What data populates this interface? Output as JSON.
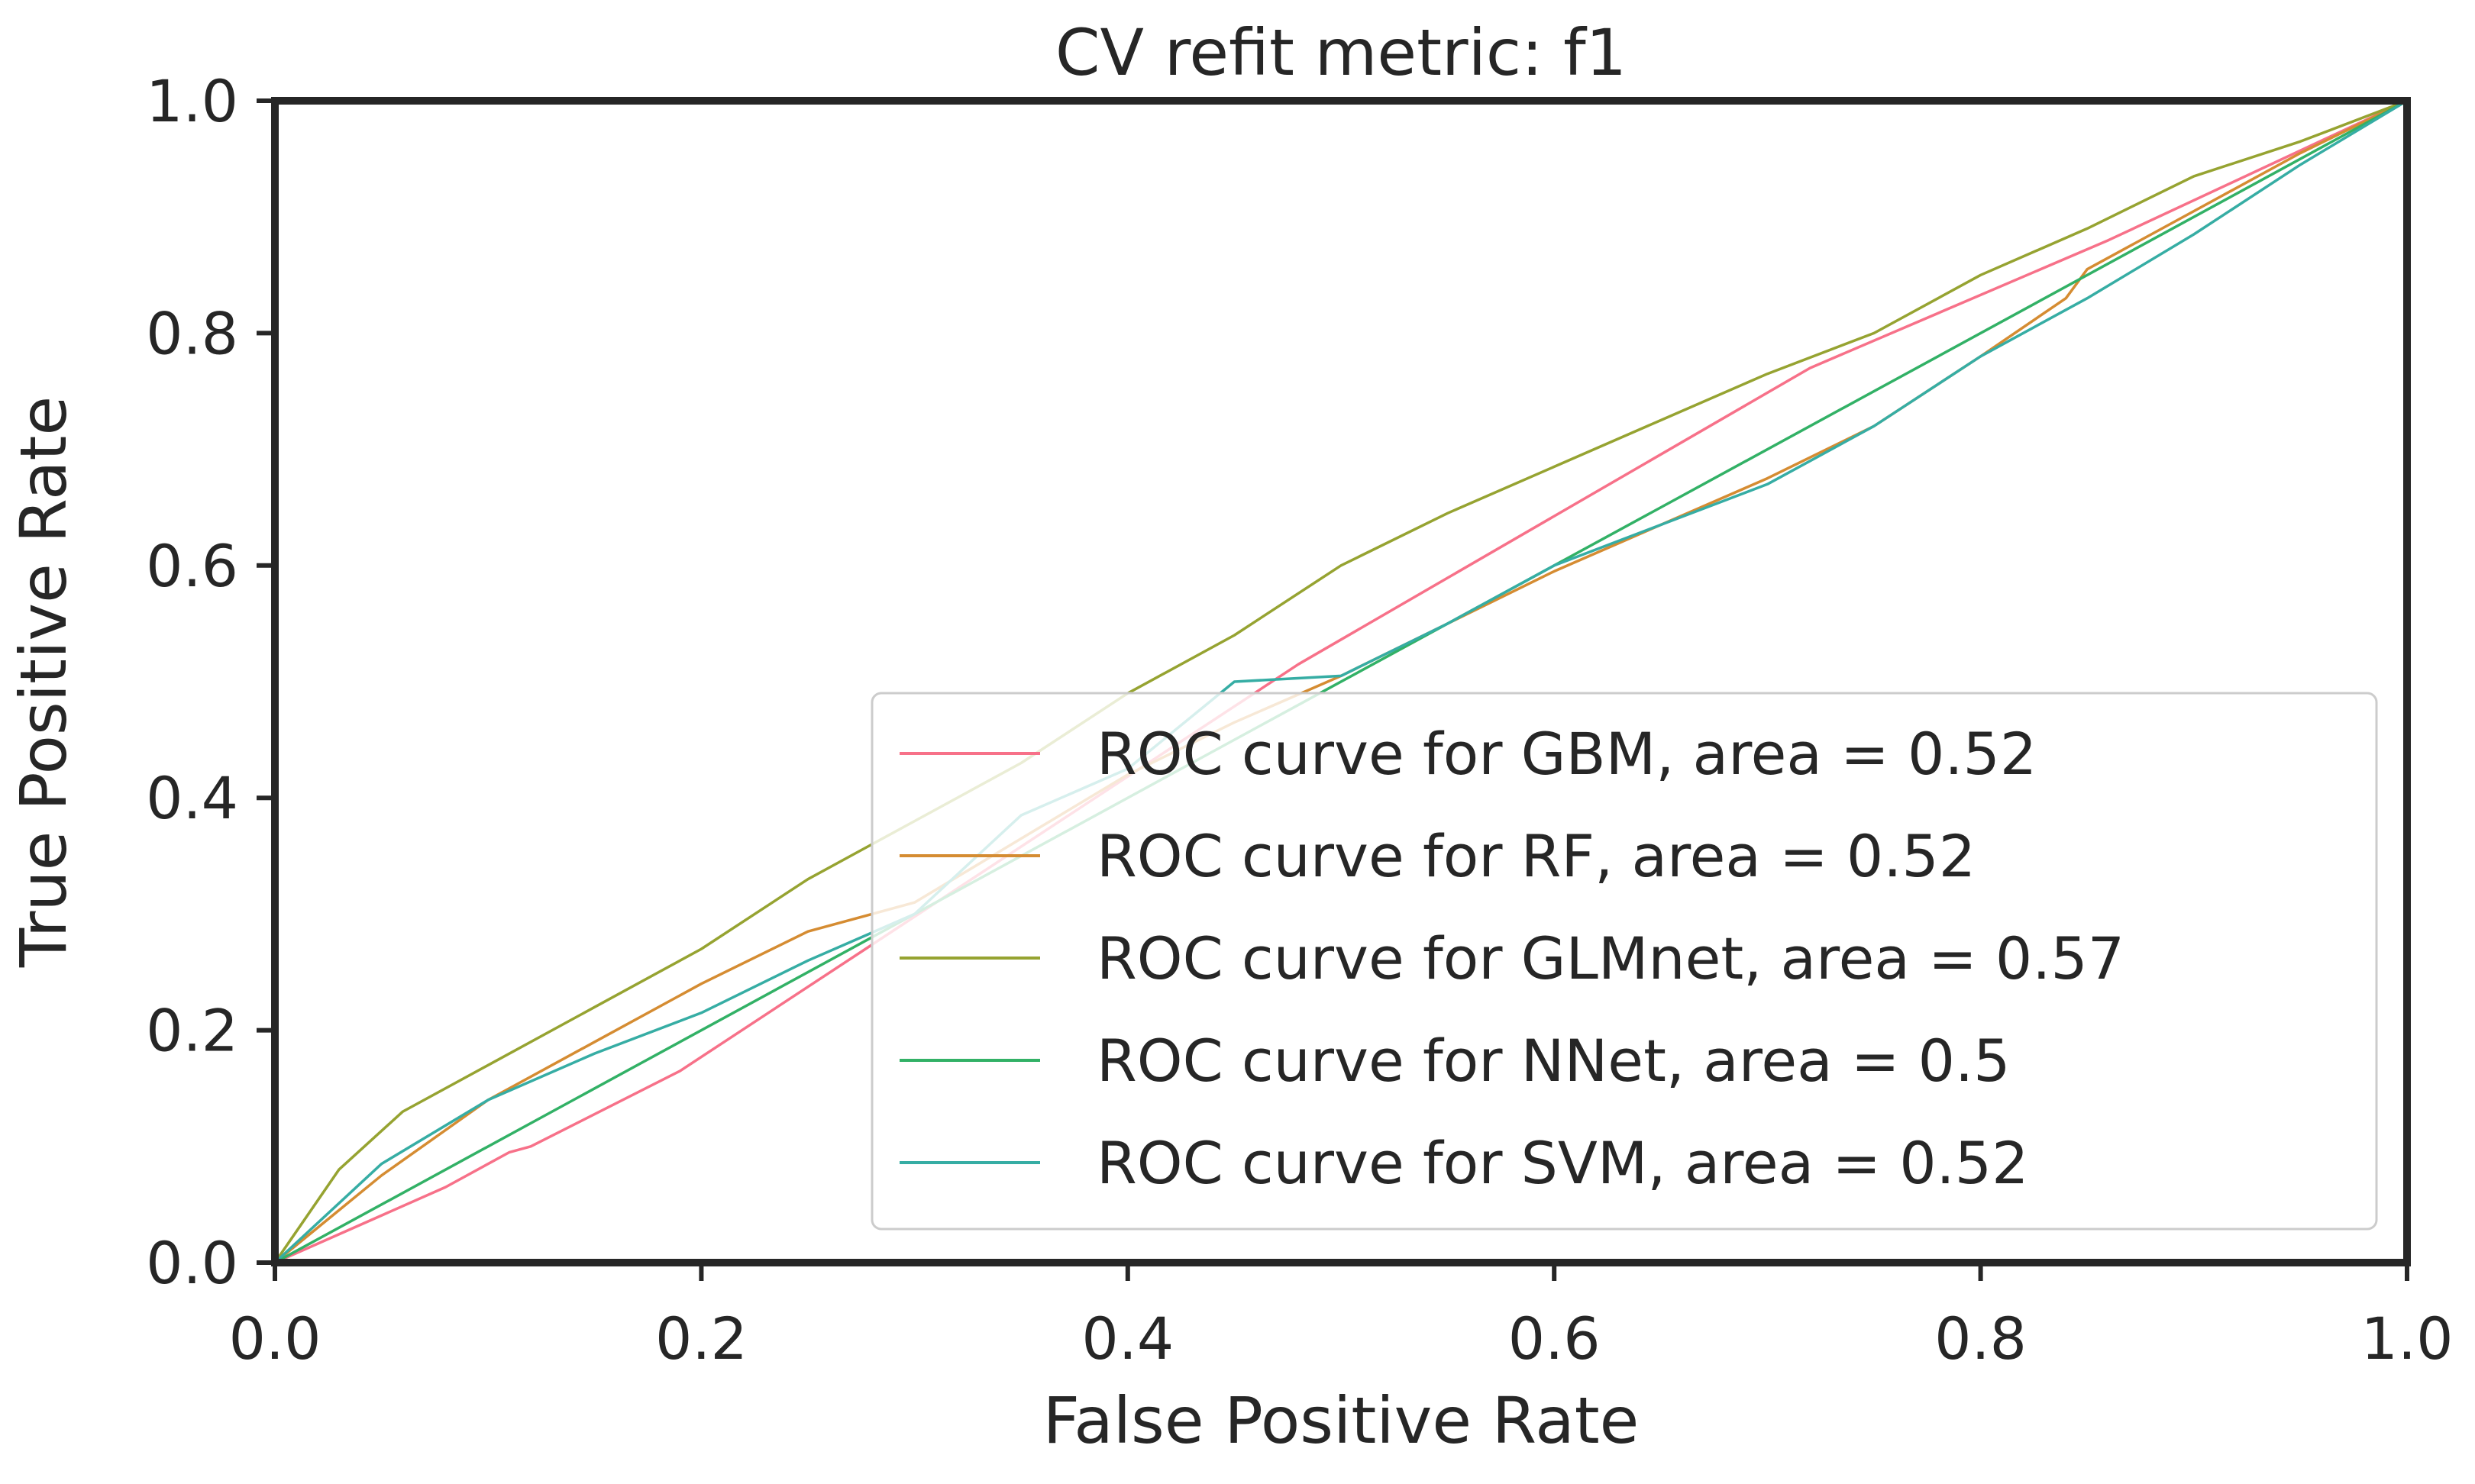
{
  "chart_data": {
    "type": "line",
    "title": "CV refit metric: f1",
    "xlabel": "False Positive Rate",
    "ylabel": "True Positive Rate",
    "xlim": [
      0.0,
      1.0
    ],
    "ylim": [
      0.0,
      1.0
    ],
    "grid": false,
    "legend_position": "lower right",
    "x_ticks": [
      "0.0",
      "0.2",
      "0.4",
      "0.6",
      "0.8",
      "1.0"
    ],
    "y_ticks": [
      "0.0",
      "0.2",
      "0.4",
      "0.6",
      "0.8",
      "1.0"
    ],
    "series": [
      {
        "name": "ROC curve for GBM, area = 0.52",
        "color": "#f77189",
        "x": [
          0.0,
          0.08,
          0.11,
          0.12,
          0.19,
          0.48,
          0.72,
          0.86,
          1.0
        ],
        "y": [
          0.0,
          0.065,
          0.095,
          0.1,
          0.165,
          0.515,
          0.77,
          0.88,
          1.0
        ]
      },
      {
        "name": "ROC curve for RF, area = 0.52",
        "color": "#d58c32",
        "x": [
          0.0,
          0.05,
          0.1,
          0.15,
          0.2,
          0.25,
          0.3,
          0.35,
          0.4,
          0.45,
          0.5,
          0.55,
          0.6,
          0.65,
          0.7,
          0.75,
          0.8,
          0.84,
          0.85,
          0.9,
          0.95,
          1.0
        ],
        "y": [
          0.0,
          0.075,
          0.14,
          0.19,
          0.24,
          0.285,
          0.31,
          0.365,
          0.42,
          0.465,
          0.505,
          0.55,
          0.595,
          0.635,
          0.675,
          0.72,
          0.78,
          0.83,
          0.855,
          0.905,
          0.955,
          1.0
        ]
      },
      {
        "name": "ROC curve for GLMnet, area = 0.57",
        "color": "#96a331",
        "x": [
          0.0,
          0.03,
          0.06,
          0.1,
          0.15,
          0.2,
          0.25,
          0.3,
          0.35,
          0.4,
          0.45,
          0.5,
          0.55,
          0.6,
          0.65,
          0.7,
          0.75,
          0.8,
          0.85,
          0.9,
          0.95,
          1.0
        ],
        "y": [
          0.0,
          0.08,
          0.13,
          0.17,
          0.22,
          0.27,
          0.33,
          0.38,
          0.43,
          0.49,
          0.54,
          0.6,
          0.645,
          0.685,
          0.725,
          0.765,
          0.8,
          0.85,
          0.89,
          0.935,
          0.965,
          1.0
        ]
      },
      {
        "name": "ROC curve for NNet, area = 0.5",
        "color": "#32b166",
        "x": [
          0.0,
          1.0
        ],
        "y": [
          0.0,
          1.0
        ]
      },
      {
        "name": "ROC curve for SVM, area = 0.52",
        "color": "#36ada4",
        "x": [
          0.0,
          0.05,
          0.1,
          0.15,
          0.2,
          0.25,
          0.3,
          0.35,
          0.4,
          0.45,
          0.5,
          0.55,
          0.6,
          0.65,
          0.7,
          0.75,
          0.8,
          0.85,
          0.9,
          0.95,
          1.0
        ],
        "y": [
          0.0,
          0.085,
          0.14,
          0.18,
          0.215,
          0.26,
          0.3,
          0.385,
          0.425,
          0.5,
          0.505,
          0.55,
          0.6,
          0.635,
          0.67,
          0.72,
          0.78,
          0.83,
          0.885,
          0.945,
          1.0
        ]
      }
    ]
  }
}
